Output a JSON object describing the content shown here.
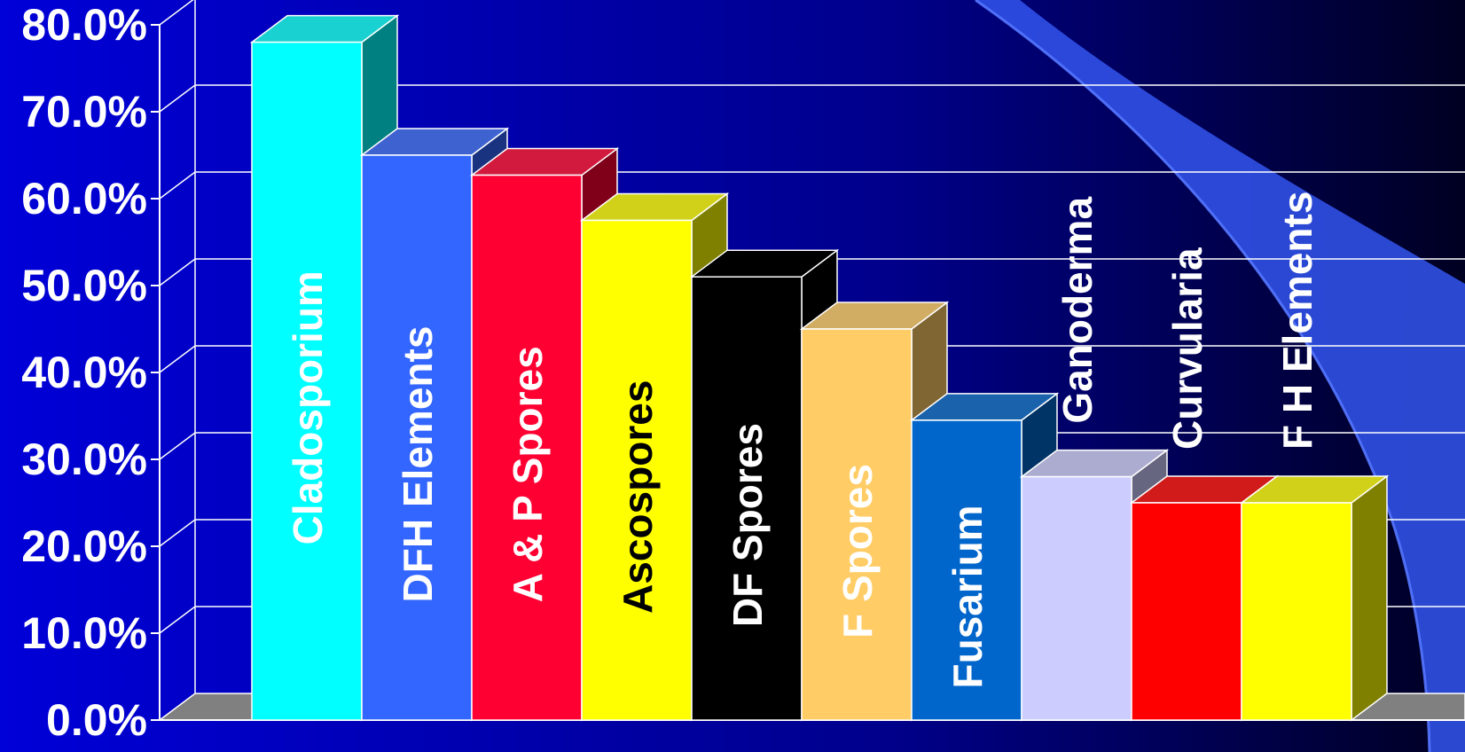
{
  "chart_data": {
    "type": "bar",
    "style": "3d-column",
    "title": "",
    "xlabel": "",
    "ylabel": "",
    "ylim": [
      0,
      80
    ],
    "y_ticks": [
      "0.0%",
      "10.0%",
      "20.0%",
      "30.0%",
      "40.0%",
      "50.0%",
      "60.0%",
      "70.0%",
      "80.0%"
    ],
    "grid": true,
    "legend": "none",
    "categories": [
      "Cladosporium",
      "DFH Elements",
      "A & P Spores",
      "Ascospores",
      "DF Spores",
      "F Spores",
      "Fusarium",
      "Ganoderma",
      "Curvularia",
      "F H Elements"
    ],
    "values": [
      78.0,
      65.0,
      62.7,
      57.5,
      51.0,
      45.0,
      34.5,
      28.0,
      25.0,
      25.0
    ],
    "colors": [
      "#00ffff",
      "#3366ff",
      "#ff0033",
      "#ffff00",
      "#000000",
      "#ffcc66",
      "#0066cc",
      "#ccccff",
      "#ff0000",
      "#ffff00"
    ],
    "label_colors": [
      "#ffffff",
      "#ffffff",
      "#ffffff",
      "#000000",
      "#ffffff",
      "#ffffff",
      "#ffffff",
      "#ffffff",
      "#ffffff",
      "#ffffff"
    ],
    "label_placement": [
      "inside",
      "inside",
      "inside",
      "inside",
      "inside",
      "inside",
      "inside",
      "above",
      "above",
      "above"
    ]
  }
}
